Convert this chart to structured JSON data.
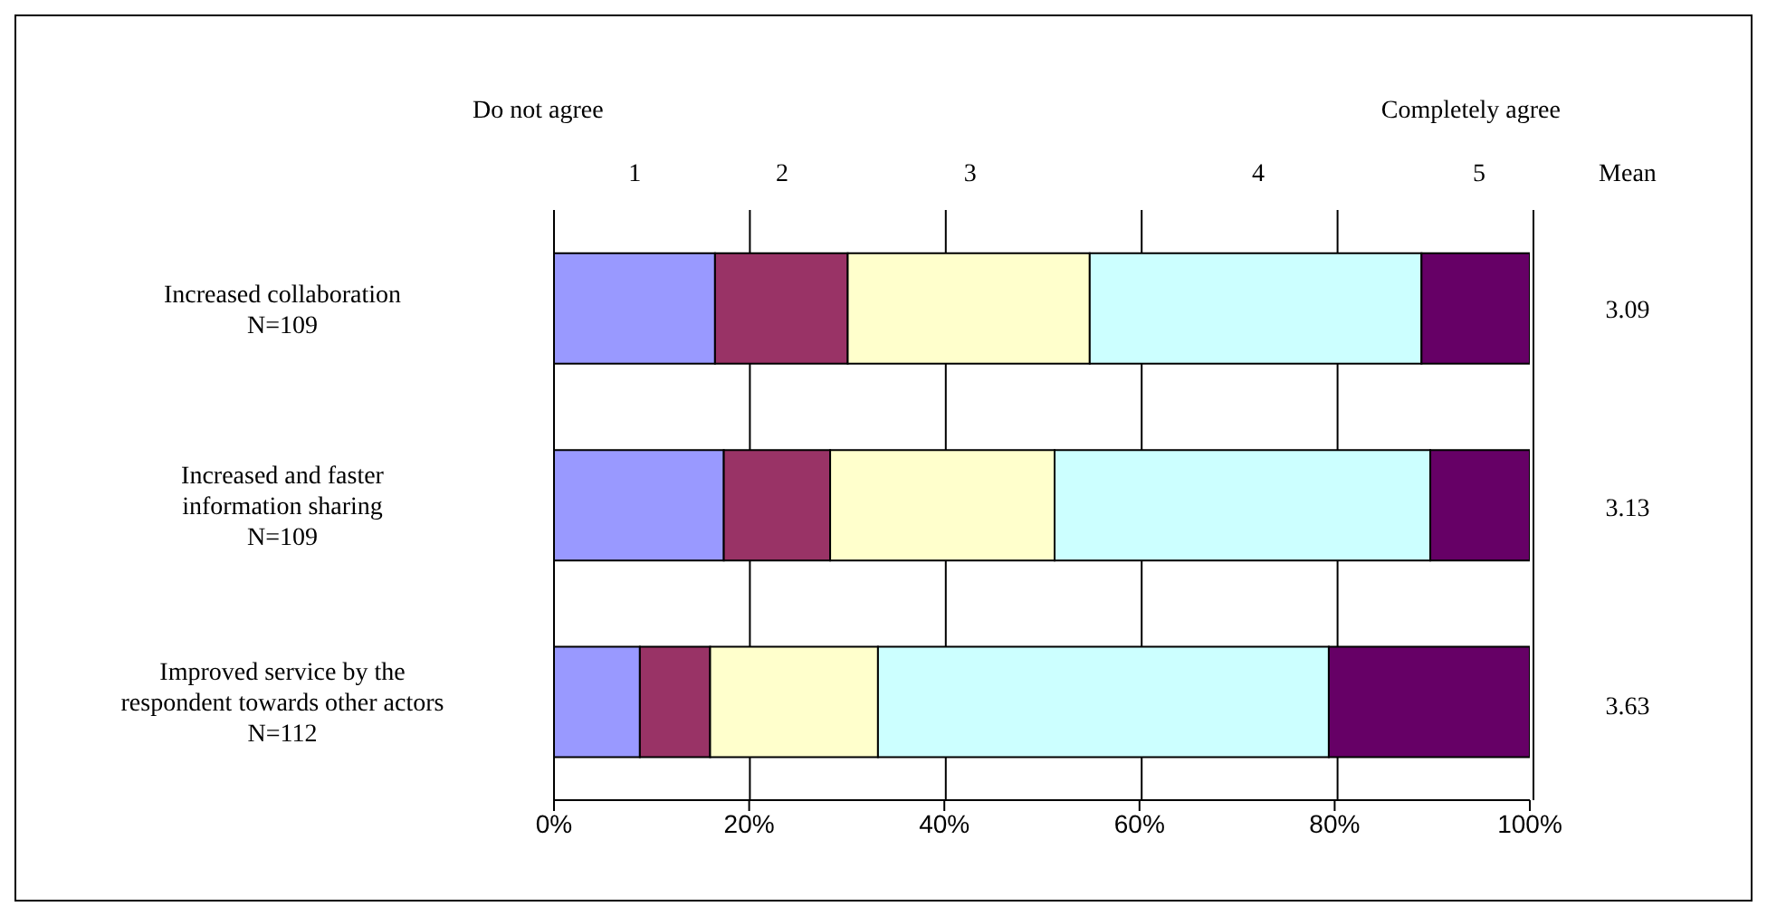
{
  "chart_data": {
    "type": "bar",
    "orientation": "horizontal",
    "stacked": true,
    "categories": [
      "Increased collaboration\nN=109",
      "Increased and faster\ninformation sharing\nN=109",
      "Improved service by the\nrespondent towards other actors\nN=112"
    ],
    "series": [
      {
        "name": "1",
        "color": "#9999ff",
        "values": [
          16.5,
          17.4,
          8.8
        ]
      },
      {
        "name": "2",
        "color": "#993366",
        "values": [
          13.6,
          10.9,
          7.2
        ]
      },
      {
        "name": "3",
        "color": "#ffffcc",
        "values": [
          24.8,
          23.0,
          17.2
        ]
      },
      {
        "name": "4",
        "color": "#ccffff",
        "values": [
          34.0,
          38.5,
          46.2
        ]
      },
      {
        "name": "5",
        "color": "#660066",
        "values": [
          11.1,
          10.2,
          20.6
        ]
      }
    ],
    "xlim": [
      0,
      100
    ],
    "xticks": [
      {
        "value": 0,
        "label": "0%"
      },
      {
        "value": 20,
        "label": "20%"
      },
      {
        "value": 40,
        "label": "40%"
      },
      {
        "value": 60,
        "label": "60%"
      },
      {
        "value": 80,
        "label": "80%"
      },
      {
        "value": 100,
        "label": "100%"
      }
    ],
    "grid": "x",
    "legend": false,
    "annotations": [
      "Do not agree",
      "Completely agree",
      "Mean",
      "3.09",
      "3.13",
      "3.63"
    ]
  }
}
